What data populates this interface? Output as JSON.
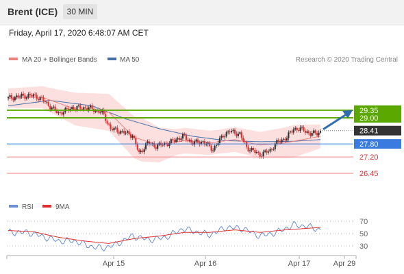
{
  "header": {
    "instrument": "Brent (ICE)",
    "timeframe": "30 MIN",
    "datetime": "Friday, April 17, 2020 6:48:07 AM CET"
  },
  "legend": {
    "ma20": "MA 20 + Bollinger Bands",
    "ma50": "MA 50",
    "credit": "Research © 2020 Trading Central",
    "rsi": "RSI",
    "rsi_ma": "9MA"
  },
  "colors": {
    "resistance": "#5aa800",
    "pivot": "#3a7be0",
    "support": "#f08080",
    "price_tag": "#333333",
    "ma20": "#f08080",
    "ma50": "#4a6fa8",
    "bb_fill": "#fbdada",
    "up_candle": "#333333",
    "down_candle": "#e03030",
    "rsi": "#6a8fd8",
    "rsi_ma": "#e03030",
    "arrow": "#2f6db0"
  },
  "icons": [
    "trend-arrow-icon"
  ],
  "chart_data": {
    "type": "candlestick",
    "y_range": [
      25.6,
      30.95
    ],
    "levels": [
      {
        "value": 29.35,
        "label": "29.35",
        "kind": "resistance"
      },
      {
        "value": 29.0,
        "label": "29.00",
        "kind": "resistance"
      },
      {
        "value": 28.41,
        "label": "28.41",
        "kind": "price"
      },
      {
        "value": 27.8,
        "label": "27.80",
        "kind": "pivot"
      },
      {
        "value": 27.2,
        "label": "27.20",
        "kind": "support"
      },
      {
        "value": 26.45,
        "label": "26.45",
        "kind": "support"
      }
    ],
    "x_ticks": [
      "Apr 15",
      "Apr 16",
      "Apr 17",
      "Apr 29"
    ],
    "rsi_ticks": [
      "70",
      "50",
      "30"
    ],
    "price_keyframes": [
      [
        0,
        29.9
      ],
      [
        8,
        30.0
      ],
      [
        15,
        30.02
      ],
      [
        20,
        29.85
      ],
      [
        30,
        29.2
      ],
      [
        38,
        29.45
      ],
      [
        48,
        29.45
      ],
      [
        56,
        29.25
      ],
      [
        61,
        28.5
      ],
      [
        68,
        28.35
      ],
      [
        74,
        28.2
      ],
      [
        78,
        27.35
      ],
      [
        83,
        27.85
      ],
      [
        88,
        27.7
      ],
      [
        96,
        27.85
      ],
      [
        104,
        28.15
      ],
      [
        110,
        27.85
      ],
      [
        116,
        27.9
      ],
      [
        122,
        27.55
      ],
      [
        128,
        28.2
      ],
      [
        132,
        28.38
      ],
      [
        138,
        28.25
      ],
      [
        142,
        27.65
      ],
      [
        150,
        27.3
      ],
      [
        156,
        27.5
      ],
      [
        160,
        27.85
      ],
      [
        166,
        28.1
      ],
      [
        170,
        28.5
      ],
      [
        176,
        28.45
      ],
      [
        180,
        28.25
      ],
      [
        186,
        28.35
      ]
    ],
    "ma20_keyframes": [
      [
        0,
        29.9
      ],
      [
        20,
        29.95
      ],
      [
        40,
        29.4
      ],
      [
        60,
        29.25
      ],
      [
        75,
        28.1
      ],
      [
        90,
        27.75
      ],
      [
        105,
        27.95
      ],
      [
        120,
        27.85
      ],
      [
        135,
        28.0
      ],
      [
        150,
        27.75
      ],
      [
        165,
        27.85
      ],
      [
        186,
        28.15
      ]
    ],
    "ma50_keyframes": [
      [
        0,
        29.55
      ],
      [
        25,
        29.8
      ],
      [
        50,
        29.55
      ],
      [
        70,
        28.95
      ],
      [
        90,
        28.5
      ],
      [
        110,
        28.15
      ],
      [
        130,
        27.95
      ],
      [
        150,
        27.9
      ],
      [
        170,
        27.92
      ],
      [
        186,
        28.0
      ]
    ],
    "bb_width_keyframes": [
      [
        0,
        0.45
      ],
      [
        20,
        0.5
      ],
      [
        40,
        0.75
      ],
      [
        60,
        0.85
      ],
      [
        80,
        1.0
      ],
      [
        100,
        0.6
      ],
      [
        125,
        0.55
      ],
      [
        150,
        0.6
      ],
      [
        170,
        0.75
      ],
      [
        186,
        0.55
      ]
    ],
    "rsi_keyframes": [
      [
        0,
        52
      ],
      [
        12,
        52
      ],
      [
        22,
        44
      ],
      [
        30,
        38
      ],
      [
        40,
        38
      ],
      [
        48,
        30
      ],
      [
        56,
        26
      ],
      [
        64,
        32
      ],
      [
        74,
        46
      ],
      [
        84,
        40
      ],
      [
        94,
        44
      ],
      [
        104,
        58
      ],
      [
        110,
        54
      ],
      [
        120,
        48
      ],
      [
        130,
        60
      ],
      [
        140,
        58
      ],
      [
        150,
        46
      ],
      [
        160,
        52
      ],
      [
        170,
        64
      ],
      [
        178,
        62
      ],
      [
        186,
        56
      ]
    ],
    "rsi_ma_keyframes": [
      [
        0,
        55
      ],
      [
        15,
        53
      ],
      [
        30,
        44
      ],
      [
        45,
        38
      ],
      [
        60,
        34
      ],
      [
        75,
        42
      ],
      [
        90,
        46
      ],
      [
        105,
        52
      ],
      [
        120,
        52
      ],
      [
        135,
        56
      ],
      [
        150,
        52
      ],
      [
        165,
        56
      ],
      [
        186,
        60
      ]
    ],
    "forecast": {
      "from": 28.41,
      "to": 29.35
    }
  }
}
